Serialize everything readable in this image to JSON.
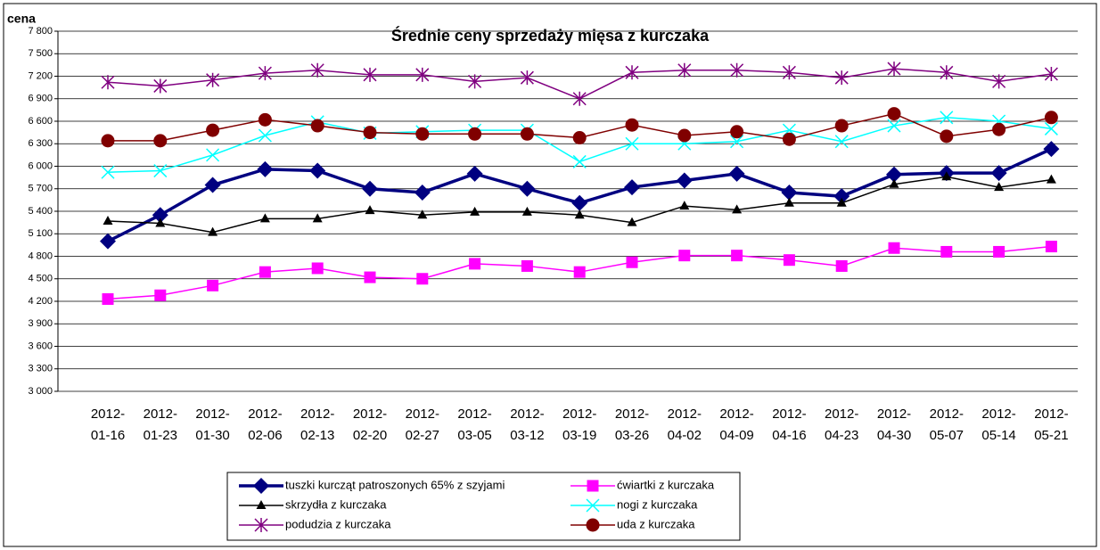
{
  "chart_data": {
    "type": "line",
    "title": "Średnie ceny sprzedaży mięsa z kurczaka",
    "y_label": "cena",
    "categories": [
      "2012-01-16",
      "2012-01-23",
      "2012-01-30",
      "2012-02-06",
      "2012-02-13",
      "2012-02-20",
      "2012-02-27",
      "2012-03-05",
      "2012-03-12",
      "2012-03-19",
      "2012-03-26",
      "2012-04-02",
      "2012-04-09",
      "2012-04-16",
      "2012-04-23",
      "2012-04-30",
      "2012-05-07",
      "2012-05-14",
      "2012-05-21"
    ],
    "ylim": [
      3000,
      7800
    ],
    "yticks": [
      {
        "value": 3000,
        "label": "3 000"
      },
      {
        "value": 3300,
        "label": "3 300"
      },
      {
        "value": 3600,
        "label": "3 600"
      },
      {
        "value": 3900,
        "label": "3 900"
      },
      {
        "value": 4200,
        "label": "4 200"
      },
      {
        "value": 4500,
        "label": "4 500"
      },
      {
        "value": 4800,
        "label": "4 800"
      },
      {
        "value": 5100,
        "label": "5 100"
      },
      {
        "value": 5400,
        "label": "5 400"
      },
      {
        "value": 5700,
        "label": "5 700"
      },
      {
        "value": 6000,
        "label": "6 000"
      },
      {
        "value": 6300,
        "label": "6 300"
      },
      {
        "value": 6600,
        "label": "6 600"
      },
      {
        "value": 6900,
        "label": "6 900"
      },
      {
        "value": 7200,
        "label": "7 200"
      },
      {
        "value": 7500,
        "label": "7 500"
      },
      {
        "value": 7800,
        "label": "7 800"
      }
    ],
    "grid": true,
    "series": [
      {
        "name": "tuszki kurcząt patroszonych 65% z szyjami",
        "color": "#000080",
        "marker": "diamond",
        "values": [
          5000,
          5350,
          5750,
          5960,
          5940,
          5700,
          5650,
          5900,
          5700,
          5510,
          5720,
          5810,
          5900,
          5650,
          5600,
          5890,
          5910,
          5910,
          6230
        ]
      },
      {
        "name": "ćwiartki z kurczaka",
        "color": "#ff00ff",
        "marker": "square",
        "values": [
          4230,
          4280,
          4410,
          4590,
          4640,
          4520,
          4500,
          4700,
          4670,
          4590,
          4720,
          4810,
          4810,
          4750,
          4670,
          4910,
          4860,
          4860,
          4930
        ]
      },
      {
        "name": "skrzydła z kurczaka",
        "color": "#000000",
        "marker": "triangle",
        "values": [
          5270,
          5240,
          5120,
          5300,
          5300,
          5410,
          5350,
          5390,
          5390,
          5350,
          5250,
          5470,
          5420,
          5510,
          5510,
          5760,
          5860,
          5720,
          5820
        ]
      },
      {
        "name": "nogi z kurczaka",
        "color": "#00ffff",
        "marker": "x",
        "values": [
          5920,
          5940,
          6150,
          6410,
          6590,
          6440,
          6460,
          6480,
          6480,
          6060,
          6300,
          6300,
          6330,
          6480,
          6330,
          6540,
          6650,
          6600,
          6500
        ]
      },
      {
        "name": "podudzia z kurczaka",
        "color": "#800080",
        "marker": "star",
        "values": [
          7120,
          7070,
          7150,
          7240,
          7280,
          7220,
          7220,
          7130,
          7180,
          6900,
          7250,
          7280,
          7280,
          7250,
          7180,
          7300,
          7250,
          7130,
          7230
        ]
      },
      {
        "name": "uda z kurczaka",
        "color": "#800000",
        "marker": "circle",
        "values": [
          6340,
          6340,
          6480,
          6620,
          6540,
          6450,
          6430,
          6430,
          6430,
          6380,
          6550,
          6410,
          6460,
          6360,
          6540,
          6700,
          6400,
          6490,
          6650
        ]
      }
    ]
  }
}
